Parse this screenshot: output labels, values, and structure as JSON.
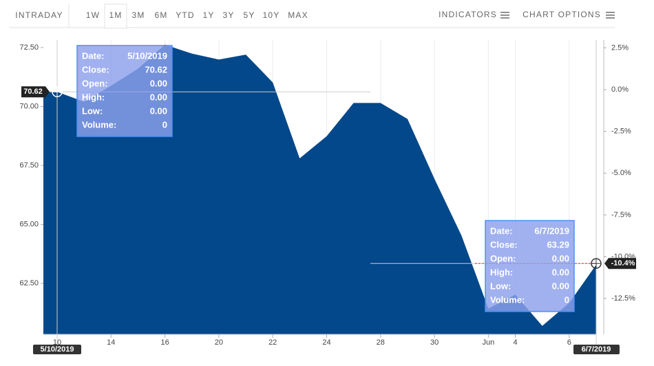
{
  "toolbar": {
    "intraday": "INTRADAY",
    "ranges": [
      "1W",
      "1M",
      "3M",
      "6M",
      "YTD",
      "1Y",
      "3Y",
      "5Y",
      "10Y",
      "MAX"
    ],
    "active": "1M",
    "indicators": "INDICATORS",
    "chart_options": "CHART OPTIONS"
  },
  "chart_data": {
    "type": "area",
    "categories": [
      "10",
      null,
      "14",
      null,
      "16",
      null,
      "20",
      null,
      "22",
      null,
      "24",
      null,
      "28",
      null,
      "30",
      null,
      "Jun",
      "4",
      null,
      "6",
      null
    ],
    "values": [
      70.62,
      70.2,
      70.88,
      71.6,
      72.62,
      72.24,
      71.99,
      72.2,
      71.02,
      67.8,
      68.74,
      70.15,
      70.15,
      69.47,
      66.93,
      64.53,
      61.43,
      62.02,
      60.7,
      61.67,
      63.29
    ],
    "color": "#03488a",
    "ylim": [
      60.34,
      72.82
    ],
    "yticks": [
      {
        "value": 62.5,
        "label": "62.50"
      },
      {
        "value": 65,
        "label": "65.00"
      },
      {
        "value": 67.5,
        "label": "67.50"
      },
      {
        "value": 70,
        "label": "70.00"
      },
      {
        "value": 72.5,
        "label": "72.50"
      }
    ],
    "y2lim": [
      -14.64,
      2.97
    ],
    "y2ticks": [
      {
        "value": 2.5,
        "label": "2.5%"
      },
      {
        "value": 0,
        "label": "0.0%"
      },
      {
        "value": -2.5,
        "label": "-2.5%"
      },
      {
        "value": -5,
        "label": "-5.0%"
      },
      {
        "value": -7.5,
        "label": "-7.5%"
      },
      {
        "value": -10,
        "label": "-10.0%"
      },
      {
        "value": -12.5,
        "label": "-12.5%"
      }
    ],
    "grid": "x",
    "start_marker": {
      "date": "5/10/2019",
      "value": 70.62
    },
    "end_marker": {
      "date": "6/7/2019",
      "change": {
        "value": -10.4,
        "label": "-10.4%"
      }
    },
    "tooltips": [
      {
        "rows": [
          [
            "Date:",
            "5/10/2019"
          ],
          [
            "Close:",
            "70.62"
          ],
          [
            "Open:",
            "0.00"
          ],
          [
            "High:",
            "0.00"
          ],
          [
            "Low:",
            "0.00"
          ],
          [
            "Volume:",
            "0"
          ]
        ]
      },
      {
        "rows": [
          [
            "Date:",
            "6/7/2019"
          ],
          [
            "Close:",
            "63.29"
          ],
          [
            "Open:",
            "0.00"
          ],
          [
            "High:",
            "0.00"
          ],
          [
            "Low:",
            "0.00"
          ],
          [
            "Volume:",
            "0"
          ]
        ]
      }
    ]
  }
}
